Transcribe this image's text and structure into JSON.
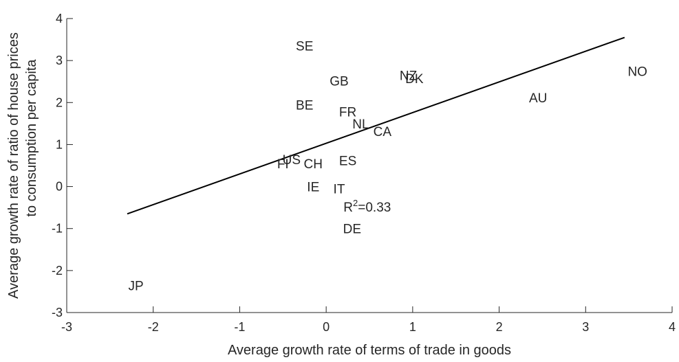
{
  "chart_data": {
    "type": "scatter",
    "title": "",
    "xlabel": "Average growth rate of terms of trade in goods",
    "ylabel": [
      "Average growth rate of ratio of house prices",
      "to consumption per capita"
    ],
    "xlim": [
      -3,
      4
    ],
    "ylim": [
      -3,
      4
    ],
    "xticks": [
      -3,
      -2,
      -1,
      0,
      1,
      2,
      3,
      4
    ],
    "yticks": [
      -3,
      -2,
      -1,
      0,
      1,
      2,
      3,
      4
    ],
    "grid": false,
    "points": [
      {
        "label": "SE",
        "x": -0.25,
        "y": 3.35
      },
      {
        "label": "NZ",
        "x": 0.95,
        "y": 2.65
      },
      {
        "label": "DK",
        "x": 1.02,
        "y": 2.58
      },
      {
        "label": "NO",
        "x": 3.6,
        "y": 2.75
      },
      {
        "label": "GB",
        "x": 0.15,
        "y": 2.52
      },
      {
        "label": "AU",
        "x": 2.45,
        "y": 2.12
      },
      {
        "label": "BE",
        "x": -0.25,
        "y": 1.95
      },
      {
        "label": "FR",
        "x": 0.25,
        "y": 1.78
      },
      {
        "label": "NL",
        "x": 0.4,
        "y": 1.5
      },
      {
        "label": "CA",
        "x": 0.65,
        "y": 1.32
      },
      {
        "label": "US",
        "x": -0.4,
        "y": 0.65
      },
      {
        "label": "FI",
        "x": -0.5,
        "y": 0.55
      },
      {
        "label": "CH",
        "x": -0.15,
        "y": 0.55
      },
      {
        "label": "ES",
        "x": 0.25,
        "y": 0.62
      },
      {
        "label": "IE",
        "x": -0.15,
        "y": 0.0
      },
      {
        "label": "IT",
        "x": 0.15,
        "y": -0.05
      },
      {
        "label": "DE",
        "x": 0.3,
        "y": -1.0
      },
      {
        "label": "JP",
        "x": -2.2,
        "y": -2.35
      }
    ],
    "fit_line": {
      "x": [
        -2.3,
        3.45
      ],
      "y": [
        -0.65,
        3.55
      ]
    },
    "annotation": {
      "base": "R",
      "sup": "2",
      "rest": "=0.33",
      "x": 0.2,
      "y": -0.48
    }
  }
}
